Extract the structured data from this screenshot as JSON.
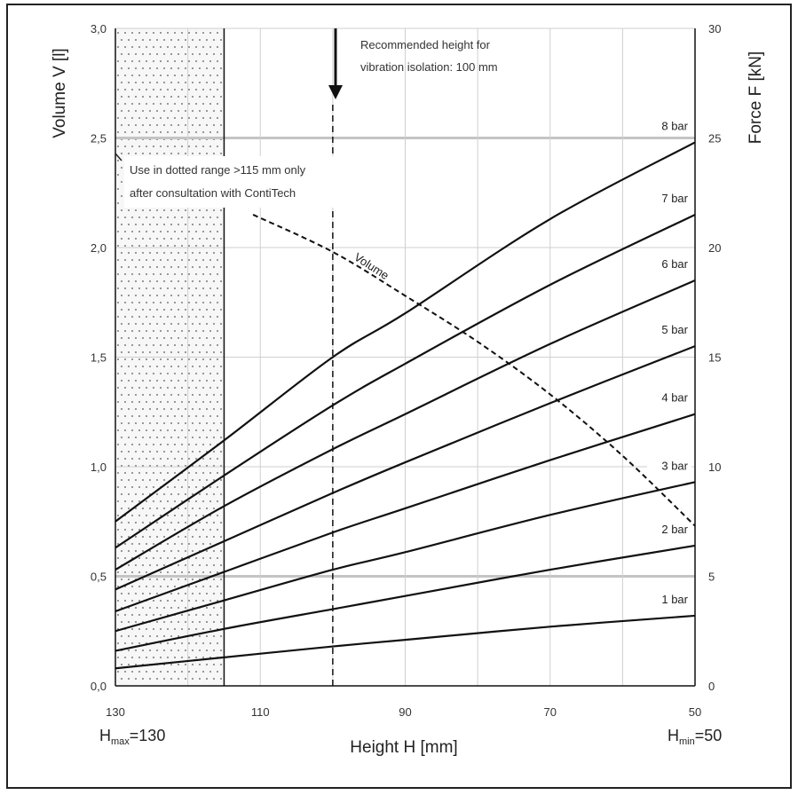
{
  "chart_data": {
    "type": "line",
    "xlabel": "Height H [mm]",
    "ylabel_left": "Volume V [l]",
    "ylabel_right": "Force F [kN]",
    "x_reversed": true,
    "xlim": [
      130,
      50
    ],
    "ylim_left": [
      0,
      3.0
    ],
    "ylim_right": [
      0,
      30
    ],
    "x_ticks": [
      "130",
      "110",
      "90",
      "70",
      "50"
    ],
    "y_ticks_left": [
      "0,0",
      "0,5",
      "1,0",
      "1,5",
      "2,0",
      "2,5",
      "3,0"
    ],
    "y_ticks_right": [
      "0",
      "5",
      "10",
      "15",
      "20",
      "25",
      "30"
    ],
    "x_extreme_labels": {
      "hmax": {
        "base": "H",
        "sub": "max",
        "value": "=130"
      },
      "hmin": {
        "base": "H",
        "sub": "min",
        "value": "=50"
      }
    },
    "grid": true,
    "dotted_range": [
      130,
      115
    ],
    "recommended_height": 100,
    "annotations": {
      "recommended": [
        "Recommended height for",
        "vibration isolation: 100 mm"
      ],
      "dotted": [
        "Use in dotted range >115 mm only",
        "after consultation with ContiTech"
      ]
    },
    "force_series": [
      {
        "name": "1 bar",
        "x": [
          130,
          115,
          100,
          90,
          70,
          50
        ],
        "y": [
          0.8,
          1.3,
          1.8,
          2.1,
          2.7,
          3.2
        ]
      },
      {
        "name": "2 bar",
        "x": [
          130,
          115,
          100,
          90,
          70,
          50
        ],
        "y": [
          1.6,
          2.6,
          3.5,
          4.1,
          5.3,
          6.4
        ]
      },
      {
        "name": "3 bar",
        "x": [
          130,
          115,
          100,
          90,
          70,
          50
        ],
        "y": [
          2.5,
          3.9,
          5.3,
          6.1,
          7.8,
          9.3
        ]
      },
      {
        "name": "4 bar",
        "x": [
          130,
          115,
          100,
          90,
          70,
          50
        ],
        "y": [
          3.4,
          5.2,
          7.0,
          8.1,
          10.3,
          12.4
        ]
      },
      {
        "name": "5 bar",
        "x": [
          130,
          115,
          100,
          90,
          70,
          50
        ],
        "y": [
          4.4,
          6.6,
          8.8,
          10.2,
          12.9,
          15.5
        ]
      },
      {
        "name": "6 bar",
        "x": [
          130,
          115,
          100,
          90,
          70,
          50
        ],
        "y": [
          5.3,
          8.2,
          10.8,
          12.4,
          15.6,
          18.5
        ]
      },
      {
        "name": "7 bar",
        "x": [
          130,
          115,
          100,
          90,
          70,
          50
        ],
        "y": [
          6.3,
          9.6,
          12.8,
          14.7,
          18.3,
          21.5
        ]
      },
      {
        "name": "8 bar",
        "x": [
          130,
          115,
          100,
          90,
          70,
          50
        ],
        "y": [
          7.5,
          11.2,
          15.0,
          17.0,
          21.3,
          24.8
        ]
      }
    ],
    "volume_series": {
      "name": "Volume",
      "x": [
        111,
        100,
        90,
        80,
        70,
        60,
        50
      ],
      "y": [
        2.15,
        1.98,
        1.78,
        1.57,
        1.33,
        1.05,
        0.73
      ]
    }
  }
}
